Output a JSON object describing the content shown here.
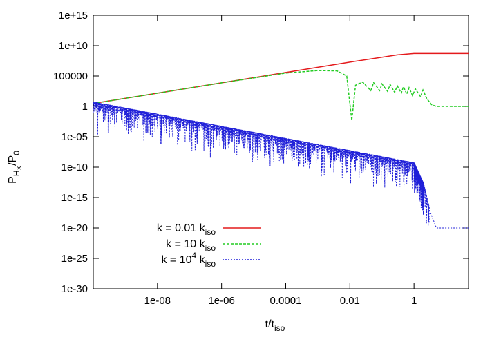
{
  "chart_data": {
    "type": "line",
    "xlabel": "t/t",
    "xlabel_sub": "iso",
    "ylabel": "P",
    "ylabel_sub": "H",
    "ylabel_subsub": "X",
    "ylabel_suffix": "/P",
    "ylabel_suffix_sub": "0",
    "x_scale": "log",
    "y_scale": "log",
    "xlim": [
      1e-10,
      50
    ],
    "ylim": [
      1e-30,
      1000000000000000.0
    ],
    "x_ticks": [
      {
        "value": 1e-08,
        "label": "1e-08"
      },
      {
        "value": 1e-06,
        "label": "1e-06"
      },
      {
        "value": 0.0001,
        "label": "0.0001"
      },
      {
        "value": 0.01,
        "label": "0.01"
      },
      {
        "value": 1,
        "label": "1"
      }
    ],
    "y_ticks": [
      {
        "value": 1000000000000000.0,
        "label": "1e+15"
      },
      {
        "value": 10000000000.0,
        "label": "1e+10"
      },
      {
        "value": 100000.0,
        "label": "100000"
      },
      {
        "value": 1,
        "label": "1"
      },
      {
        "value": 1e-05,
        "label": "1e-05"
      },
      {
        "value": 1e-10,
        "label": "1e-10"
      },
      {
        "value": 1e-15,
        "label": "1e-15"
      },
      {
        "value": 1e-20,
        "label": "1e-20"
      },
      {
        "value": 1e-25,
        "label": "1e-25"
      },
      {
        "value": 1e-30,
        "label": "1e-30"
      }
    ],
    "legend_position": "bottom-left",
    "series": [
      {
        "name": "k = 0.01 k",
        "name_sub": "iso",
        "color": "#e41a1c",
        "dash": "solid",
        "x": [
          1e-10,
          1e-08,
          1e-06,
          0.0001,
          0.01,
          0.3,
          1,
          3,
          50
        ],
        "y": [
          3,
          150,
          7500,
          375000.0,
          19000000.0,
          300000000.0,
          500000000.0,
          500000000.0,
          500000000.0
        ]
      },
      {
        "name": "k = 10   k",
        "name_sub": "iso",
        "color": "#22cc22",
        "dash": "dashed",
        "x": [
          1e-10,
          1e-08,
          1e-06,
          0.0001,
          0.001,
          0.004,
          0.008,
          0.0115,
          0.015,
          0.025,
          0.045,
          0.055,
          0.085,
          0.1,
          0.15,
          0.18,
          0.25,
          0.3,
          0.4,
          0.47,
          0.6,
          0.7,
          0.9,
          1.1,
          1.6,
          1.9,
          2.5,
          3.5,
          5,
          50
        ],
        "y": [
          3,
          150,
          7500,
          300000.0,
          800000.0,
          700000.0,
          100000.0,
          0.005,
          3000.0,
          10000.0,
          400.0,
          8000.0,
          400.0,
          5000.0,
          300.0,
          4000.0,
          200.0,
          2500.0,
          150.0,
          1800.0,
          100.0,
          1200.0,
          60,
          800.0,
          40,
          500.0,
          20,
          2,
          1,
          1
        ]
      },
      {
        "name": "k = 10",
        "name_sup": "4",
        "name_suffix": "  k",
        "name_sub": "iso",
        "color": "#1f1fd8",
        "dash": "dotted",
        "x": [
          1e-10,
          1e-08,
          1e-06,
          0.0001,
          0.01,
          1,
          2,
          3,
          5,
          10,
          50
        ],
        "y": [
          3,
          0.03,
          0.0003,
          3e-06,
          3e-08,
          3e-10,
          1e-13,
          1e-17,
          1e-20,
          1e-20,
          1e-20
        ]
      }
    ]
  }
}
